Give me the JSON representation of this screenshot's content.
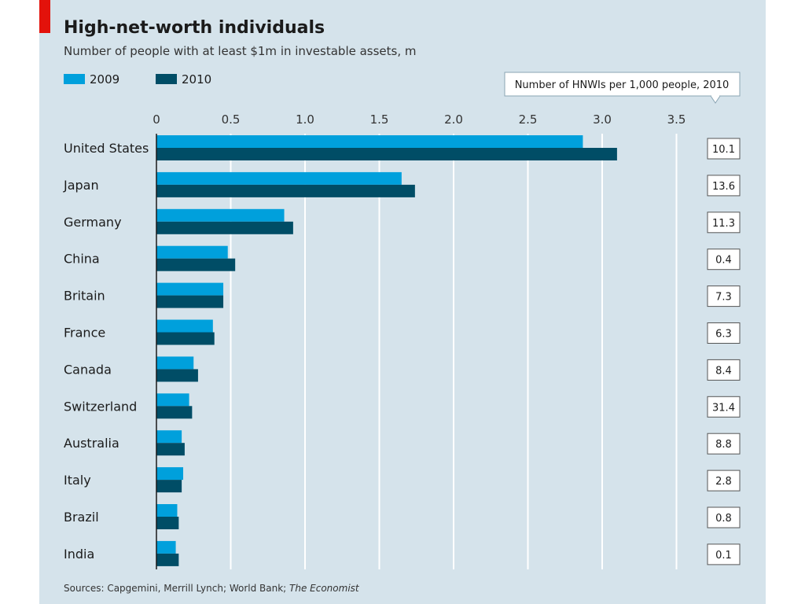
{
  "chart_data": {
    "type": "bar",
    "orientation": "horizontal",
    "title": "High-net-worth individuals",
    "subtitle": "Number of people with at least $1m in investable assets, m",
    "categories": [
      "United States",
      "Japan",
      "Germany",
      "China",
      "Britain",
      "France",
      "Canada",
      "Switzerland",
      "Australia",
      "Italy",
      "Brazil",
      "India"
    ],
    "series": [
      {
        "name": "2009",
        "color": "#00a0dc",
        "values": [
          2.87,
          1.65,
          0.86,
          0.48,
          0.45,
          0.38,
          0.25,
          0.22,
          0.17,
          0.18,
          0.14,
          0.13
        ]
      },
      {
        "name": "2010",
        "color": "#004d66",
        "values": [
          3.1,
          1.74,
          0.92,
          0.53,
          0.45,
          0.39,
          0.28,
          0.24,
          0.19,
          0.17,
          0.15,
          0.15
        ]
      }
    ],
    "xlim": [
      0,
      3.5
    ],
    "xticks": [
      "0",
      "0.5",
      "1.0",
      "1.5",
      "2.0",
      "2.5",
      "3.0",
      "3.5"
    ],
    "xtick_values": [
      0,
      0.5,
      1.0,
      1.5,
      2.0,
      2.5,
      3.0,
      3.5
    ],
    "grid": true,
    "legend_position": "top-left",
    "side_panel": {
      "header": "Number of HNWIs per 1,000 people, 2010",
      "values": [
        "10.1",
        "13.6",
        "11.3",
        "0.4",
        "7.3",
        "6.3",
        "8.4",
        "31.4",
        "8.8",
        "2.8",
        "0.8",
        "0.1"
      ]
    },
    "source_prefix": "Sources: Capgemini, Merrill Lynch; World Bank; ",
    "source_italic": "The Economist"
  },
  "colors": {
    "background": "#d5e3eb",
    "accent_red": "#e3120b",
    "grid": "#ffffff",
    "axis": "#1b1b1b"
  }
}
